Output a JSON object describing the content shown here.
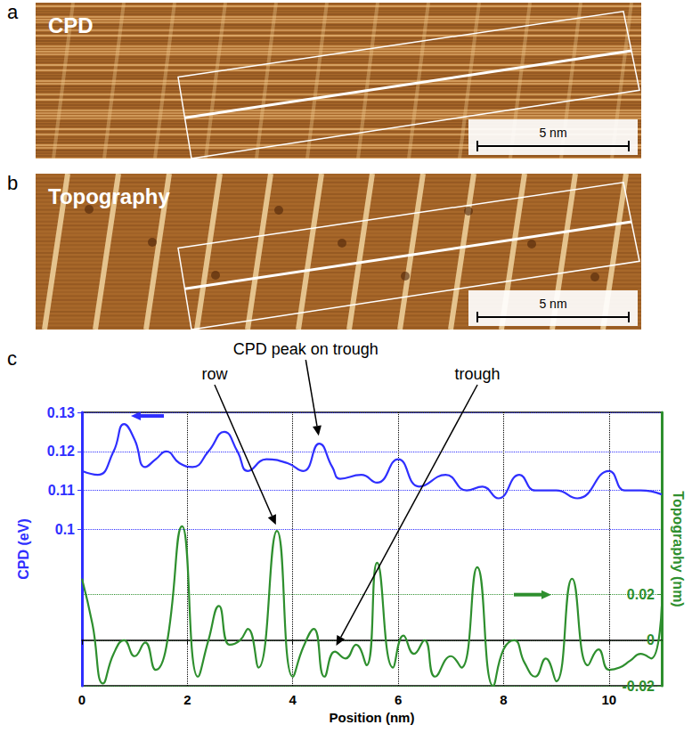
{
  "panels": [
    {
      "letter": "a",
      "label": "CPD",
      "scale_bar": "5 nm"
    },
    {
      "letter": "b",
      "label": "Topography",
      "scale_bar": "5 nm"
    }
  ],
  "chart_data": {
    "letter": "c",
    "type": "line",
    "x_label": "Position (nm)",
    "y_label": "CPD (eV)",
    "y2_label": "Topography (nm)",
    "xlim": [
      0,
      11
    ],
    "xticks": [
      0,
      2,
      4,
      6,
      8,
      10
    ],
    "ylim": [
      0.06,
      0.13
    ],
    "yticks": [
      0.1,
      0.11,
      0.12,
      0.13
    ],
    "y2lim": [
      -0.02,
      0.1
    ],
    "y2ticks": [
      -0.02,
      0,
      0.02
    ],
    "grid": true,
    "series": [
      {
        "color": "#2f2fff",
        "axis": "y",
        "x": [
          0,
          0.3,
          0.6,
          0.8,
          1.0,
          1.2,
          1.4,
          1.6,
          1.85,
          2.1,
          2.4,
          2.7,
          2.95,
          3.15,
          3.5,
          3.9,
          4.2,
          4.5,
          4.75,
          4.9,
          5.3,
          5.6,
          6.0,
          6.4,
          6.9,
          7.3,
          7.6,
          7.9,
          8.3,
          8.6,
          9.0,
          9.4,
          10.0,
          10.3,
          10.6,
          11
        ],
        "values": [
          0.115,
          0.114,
          0.12,
          0.127,
          0.123,
          0.116,
          0.118,
          0.12,
          0.117,
          0.116,
          0.12,
          0.125,
          0.12,
          0.115,
          0.118,
          0.117,
          0.115,
          0.122,
          0.116,
          0.113,
          0.114,
          0.112,
          0.118,
          0.111,
          0.114,
          0.11,
          0.111,
          0.108,
          0.114,
          0.11,
          0.11,
          0.108,
          0.115,
          0.11,
          0.11,
          0.109
        ]
      },
      {
        "color": "#2e8f2e",
        "axis": "y2",
        "x": [
          0,
          0.2,
          0.4,
          0.6,
          0.8,
          1.0,
          1.2,
          1.4,
          1.6,
          1.9,
          2.2,
          2.4,
          2.6,
          2.8,
          3.0,
          3.15,
          3.35,
          3.7,
          4.0,
          4.2,
          4.4,
          4.6,
          4.8,
          5.0,
          5.2,
          5.4,
          5.6,
          5.9,
          6.1,
          6.3,
          6.5,
          6.7,
          7.0,
          7.2,
          7.5,
          7.8,
          8.0,
          8.2,
          8.4,
          8.6,
          8.8,
          9.0,
          9.3,
          9.6,
          9.8,
          10.0,
          10.2,
          10.4,
          10.6,
          10.8,
          11.0
        ],
        "values": [
          0.027,
          0.007,
          -0.019,
          -0.006,
          0.0,
          -0.007,
          -0.001,
          -0.013,
          -0.003,
          0.05,
          -0.016,
          0.0,
          0.015,
          -0.002,
          0.0,
          0.005,
          -0.012,
          0.048,
          -0.016,
          -0.003,
          0.005,
          -0.016,
          -0.005,
          -0.008,
          -0.002,
          -0.011,
          0.034,
          -0.012,
          0.002,
          -0.006,
          0.0,
          -0.016,
          -0.007,
          -0.012,
          0.032,
          -0.02,
          -0.004,
          0.0,
          -0.01,
          -0.016,
          -0.008,
          -0.018,
          0.027,
          -0.011,
          -0.004,
          -0.013,
          -0.012,
          -0.009,
          -0.006,
          -0.008,
          0.015
        ]
      }
    ],
    "annotations": [
      {
        "text": "row",
        "x": 3.7,
        "y": 0.048,
        "axis": "y2"
      },
      {
        "text": "CPD peak on trough",
        "x": 4.5,
        "y": 0.122,
        "axis": "y"
      },
      {
        "text": "trough",
        "x": 4.8,
        "y": -0.005,
        "axis": "y2"
      }
    ]
  }
}
